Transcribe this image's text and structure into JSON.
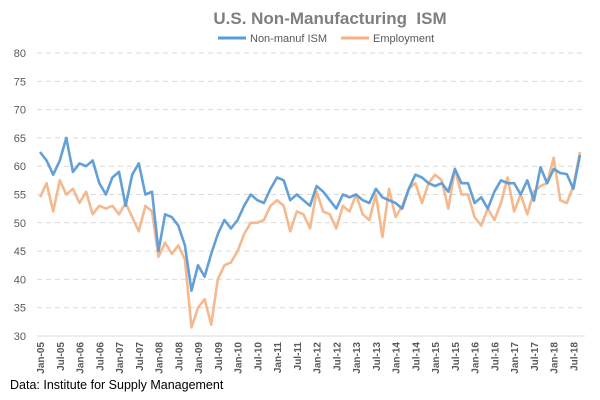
{
  "chart_data": {
    "type": "line",
    "title": "U.S. Non-Manufacturing  ISM",
    "xlabel": "",
    "ylabel": "",
    "ylim": [
      30,
      80
    ],
    "yticks": [
      30,
      35,
      40,
      45,
      50,
      55,
      60,
      65,
      70,
      75,
      80
    ],
    "grid": true,
    "legend": "top-center",
    "x_step_months": 2,
    "xtick_labels": [
      "Jan-05",
      "Jul-05",
      "Jan-06",
      "Jul-06",
      "Jan-07",
      "Jul-07",
      "Jan-08",
      "Jul-08",
      "Jan-09",
      "Jul-09",
      "Jan-10",
      "Jul-10",
      "Jan-11",
      "Jul-11",
      "Jan-12",
      "Jul-12",
      "Jan-13",
      "Jul-13",
      "Jan-14",
      "Jul-14",
      "Jan-15",
      "Jul-15",
      "Jan-16",
      "Jul-16",
      "Jan-17",
      "Jul-17",
      "Jan-18",
      "Jul-18"
    ],
    "series": [
      {
        "name": "Employment",
        "color": "#F4B183",
        "values": [
          54.5,
          57,
          52,
          57.5,
          55,
          56,
          53.5,
          55.5,
          51.5,
          53,
          52.5,
          53,
          51.5,
          53.5,
          51,
          48.5,
          53,
          52,
          44,
          46.5,
          44.5,
          46,
          43.5,
          31.5,
          35,
          36.5,
          32,
          40,
          42.5,
          43,
          45,
          48,
          50,
          50,
          50.5,
          53,
          54,
          53,
          48.5,
          52,
          51.5,
          49,
          55.5,
          52,
          51.5,
          49,
          53,
          52,
          55,
          51.5,
          50.5,
          55,
          47.5,
          56,
          51,
          53,
          56,
          57,
          53.5,
          57,
          58.5,
          57.5,
          52.5,
          59.5,
          55,
          55,
          51,
          49.5,
          52.5,
          50.5,
          53.5,
          58,
          52,
          55,
          51.5,
          55.5,
          56.5,
          57,
          61.5,
          54,
          53.5,
          56.5,
          62.5
        ]
      },
      {
        "name": "Non-manuf ISM",
        "color": "#5B9BD5",
        "values": [
          62.5,
          61,
          58.5,
          61,
          65,
          59,
          60.5,
          60,
          61,
          57,
          55,
          58,
          59,
          53,
          58.5,
          60.5,
          55,
          55.5,
          45,
          51.5,
          51,
          49.5,
          46,
          38,
          42.5,
          40.5,
          44.5,
          48,
          50.5,
          49,
          50.5,
          53,
          55,
          54,
          53.5,
          56,
          58,
          57.5,
          54,
          55,
          54,
          53,
          56.5,
          55.5,
          54,
          52.5,
          55,
          54.5,
          55,
          54,
          53.5,
          56,
          54.5,
          54,
          53.5,
          52.5,
          56,
          58.5,
          58,
          57,
          56.5,
          57,
          55.5,
          59.5,
          57,
          57,
          53.5,
          54.5,
          52.5,
          55.5,
          57.5,
          57,
          57,
          55,
          57.5,
          53.9,
          59.8,
          57,
          59.5,
          58.8,
          58.6,
          56,
          62
        ]
      }
    ],
    "source_note": "Data: Institute for Supply Management"
  }
}
